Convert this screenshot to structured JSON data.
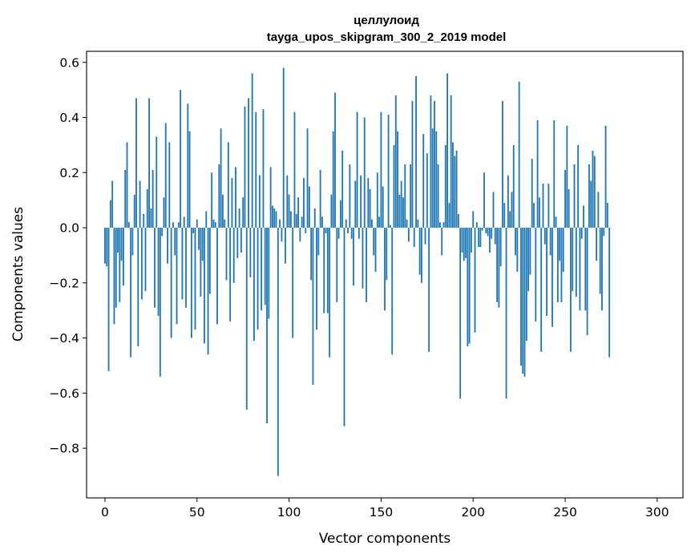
{
  "chart_data": {
    "type": "bar",
    "title": "целлулоид",
    "subtitle": "tayga_upos_skipgram_300_2_2019 model",
    "xlabel": "Vector components",
    "ylabel": "Components values",
    "xlim": [
      -10,
      314
    ],
    "ylim": [
      -0.98,
      0.64
    ],
    "xticks": [
      0,
      50,
      100,
      150,
      200,
      250,
      300
    ],
    "yticks": [
      -0.8,
      -0.6,
      -0.4,
      -0.2,
      0.0,
      0.2,
      0.4,
      0.6
    ],
    "ytick_labels": [
      "−0.8",
      "−0.6",
      "−0.4",
      "−0.2",
      "0.0",
      "0.2",
      "0.4",
      "0.6"
    ],
    "grid": false,
    "bar_color": "#1f77b4",
    "values": [
      -0.13,
      -0.14,
      -0.52,
      0.1,
      0.17,
      -0.35,
      -0.29,
      -0.09,
      -0.27,
      -0.12,
      -0.21,
      0.21,
      0.31,
      0.02,
      -0.47,
      -0.1,
      0.12,
      0.47,
      -0.43,
      0.17,
      -0.26,
      0.05,
      -0.23,
      0.14,
      0.47,
      0.07,
      0.21,
      -0.29,
      0.33,
      -0.32,
      -0.54,
      -0.03,
      0.11,
      0.38,
      -0.13,
      0.31,
      -0.4,
      0.02,
      -0.1,
      -0.35,
      0.02,
      0.5,
      -0.26,
      0.04,
      -0.29,
      0.45,
      0.35,
      -0.4,
      -0.02,
      -0.37,
      0.03,
      -0.08,
      -0.25,
      -0.12,
      -0.42,
      0.06,
      -0.46,
      -0.24,
      0.2,
      0.03,
      0.02,
      -0.35,
      0.23,
      0.36,
      0.12,
      0.03,
      -0.19,
      0.31,
      -0.34,
      0.18,
      -0.2,
      0.22,
      -0.11,
      0.07,
      -0.09,
      0.11,
      0.44,
      -0.66,
      0.47,
      -0.18,
      0.56,
      -0.41,
      0.42,
      -0.37,
      0.19,
      -0.3,
      0.43,
      -0.28,
      -0.71,
      -0.33,
      0.22,
      0.08,
      0.07,
      0.06,
      -0.9,
      0.03,
      -0.05,
      0.58,
      -0.13,
      0.19,
      0.12,
      0.06,
      -0.4,
      0.42,
      0.05,
      0.11,
      -0.05,
      0.04,
      0.18,
      -0.02,
      0.36,
      0.15,
      -0.19,
      -0.57,
      0.07,
      -0.37,
      -0.1,
      0.21,
      0.04,
      -0.31,
      -0.02,
      -0.31,
      -0.47,
      0.12,
      0.35,
      0.49,
      -0.27,
      -0.04,
      0.1,
      0.28,
      -0.72,
      0.03,
      -0.02,
      0.23,
      -0.04,
      -0.21,
      0.17,
      0.42,
      -0.04,
      0.19,
      -0.22,
      0.4,
      -0.27,
      0.18,
      0.14,
      0.03,
      -0.1,
      -0.16,
      0.2,
      0.04,
      0.42,
      0.15,
      -0.3,
      -0.19,
      0.41,
      0.01,
      -0.46,
      0.3,
      0.48,
      0.35,
      0.12,
      0.17,
      0.11,
      0.23,
      0.03,
      -0.05,
      0.23,
      0.46,
      -0.07,
      0.55,
      0.03,
      -0.17,
      -0.2,
      0.34,
      -0.06,
      0.27,
      -0.45,
      0.48,
      0.36,
      0.46,
      0.35,
      0.23,
      0.02,
      -0.1,
      0.02,
      0.3,
      0.56,
      0.09,
      0.48,
      0.31,
      0.26,
      0.28,
      0.05,
      -0.62,
      -0.09,
      -0.12,
      -0.11,
      -0.43,
      -0.42,
      -0.09,
      0.06,
      -0.38,
      0.02,
      -0.07,
      -0.07,
      -0.01,
      0.2,
      -0.02,
      -0.03,
      -0.09,
      -0.04,
      0.13,
      -0.06,
      -0.27,
      -0.29,
      -0.14,
      0.46,
      0.09,
      -0.62,
      0.19,
      0.06,
      0.13,
      0.3,
      -0.1,
      -0.16,
      0.53,
      -0.5,
      -0.53,
      -0.54,
      -0.41,
      -0.23,
      -0.17,
      0.25,
      0.09,
      -0.34,
      0.39,
      0.11,
      -0.45,
      0.16,
      -0.06,
      -0.32,
      0.16,
      -0.1,
      -0.36,
      0.39,
      0.04,
      -0.27,
      -0.12,
      -0.27,
      -0.16,
      0.21,
      0.37,
      0.14,
      -0.45,
      -0.23,
      0.23,
      -0.25,
      0.3,
      -0.3,
      -0.04,
      0.08,
      -0.3,
      -0.39,
      0.23,
      0.17,
      0.28,
      0.26,
      -0.12,
      0.13,
      -0.24,
      -0.3,
      -0.03,
      0.37,
      0.09,
      -0.47,
      0.0
    ]
  }
}
